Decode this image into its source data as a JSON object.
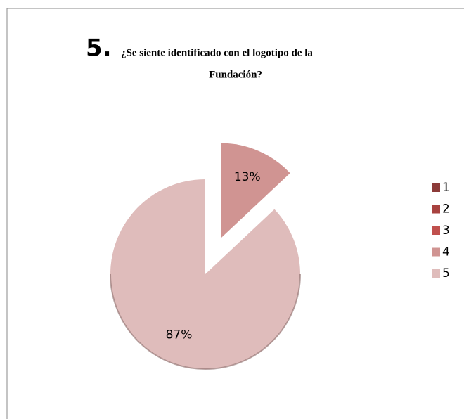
{
  "chart_data": {
    "type": "pie",
    "title_number": "5.",
    "title": [
      "¿Se siente identificado con el logotipo de la",
      "Fundación?"
    ],
    "categories": [
      "1",
      "2",
      "3",
      "4",
      "5"
    ],
    "values": [
      0,
      0,
      0,
      13,
      87
    ],
    "value_labels": [
      null,
      null,
      null,
      "13%",
      "87%"
    ],
    "colors": [
      "#8c3b39",
      "#a8423f",
      "#c0504d",
      "#d09492",
      "#dfbcbb"
    ],
    "exploded": [
      false,
      false,
      false,
      true,
      false
    ],
    "legend": "right"
  }
}
